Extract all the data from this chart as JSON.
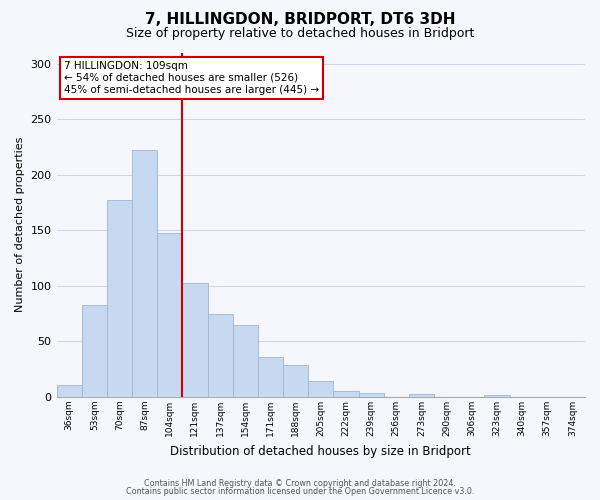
{
  "title": "7, HILLINGDON, BRIDPORT, DT6 3DH",
  "subtitle": "Size of property relative to detached houses in Bridport",
  "xlabel": "Distribution of detached houses by size in Bridport",
  "ylabel": "Number of detached properties",
  "bar_color": "#c6d9f1",
  "bar_edge_color": "#9ab8d8",
  "bins": [
    "36sqm",
    "53sqm",
    "70sqm",
    "87sqm",
    "104sqm",
    "121sqm",
    "137sqm",
    "154sqm",
    "171sqm",
    "188sqm",
    "205sqm",
    "222sqm",
    "239sqm",
    "256sqm",
    "273sqm",
    "290sqm",
    "306sqm",
    "323sqm",
    "340sqm",
    "357sqm",
    "374sqm"
  ],
  "values": [
    11,
    83,
    177,
    222,
    148,
    103,
    75,
    65,
    36,
    29,
    14,
    5,
    4,
    0,
    3,
    0,
    0,
    2,
    0,
    0,
    0
  ],
  "vline_color": "#cc0000",
  "annotation_title": "7 HILLINGDON: 109sqm",
  "annotation_line1": "← 54% of detached houses are smaller (526)",
  "annotation_line2": "45% of semi-detached houses are larger (445) →",
  "annotation_box_color": "#ffffff",
  "annotation_box_edge_color": "#cc0000",
  "ylim": [
    0,
    310
  ],
  "yticks": [
    0,
    50,
    100,
    150,
    200,
    250,
    300
  ],
  "footnote1": "Contains HM Land Registry data © Crown copyright and database right 2024.",
  "footnote2": "Contains public sector information licensed under the Open Government Licence v3.0.",
  "grid_color": "#d0d8e8",
  "background_color": "#f5f7fc"
}
